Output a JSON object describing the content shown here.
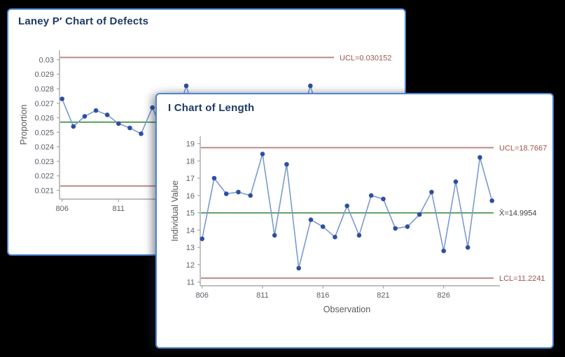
{
  "desktop": {
    "background": "#000000"
  },
  "theme": {
    "window_border": "#4e86d2",
    "window_bg": "#ffffff",
    "title_color": "#1e3a66",
    "axis_color": "#a8a8a8",
    "tick_label_color": "#5a6068",
    "axis_title_color": "#595959",
    "line_color": "#7b9ace",
    "marker_color": "#2d4fa2",
    "limit_line_color": "#bf8a85",
    "limit_label_color": "#9b564d",
    "center_line_color": "#3a8a3f",
    "center_label_color": "#404040"
  },
  "windows": [
    {
      "id": "laney",
      "title": "Laney P′ Chart of Defects"
    },
    {
      "id": "ichart",
      "title": "I Chart of Length"
    }
  ],
  "chart_data": [
    {
      "id": "laney",
      "type": "line",
      "title": "Laney P′ Chart of Defects",
      "xlabel": "",
      "ylabel": "Proportion",
      "ylim": [
        0.0204,
        0.0306
      ],
      "yticks": [
        {
          "v": 0.03,
          "label": "0.03"
        },
        {
          "v": 0.029,
          "label": "0.029"
        },
        {
          "v": 0.028,
          "label": "0.028"
        },
        {
          "v": 0.027,
          "label": "0.027"
        },
        {
          "v": 0.026,
          "label": "0.026"
        },
        {
          "v": 0.025,
          "label": "0.025"
        },
        {
          "v": 0.024,
          "label": "0.024"
        },
        {
          "v": 0.023,
          "label": "0.023"
        },
        {
          "v": 0.022,
          "label": "0.022"
        },
        {
          "v": 0.021,
          "label": "0.021"
        }
      ],
      "xticks": [
        {
          "v": 806,
          "label": "806"
        },
        {
          "v": 811,
          "label": "811"
        }
      ],
      "ucl": {
        "value": 0.030152,
        "label": "UCL=0.030152"
      },
      "center": {
        "value": 0.0257,
        "label": ""
      },
      "lcl": {
        "value": 0.0213,
        "label": ""
      },
      "points": [
        {
          "x": 806,
          "y": 0.0273
        },
        {
          "x": 807,
          "y": 0.0254
        },
        {
          "x": 808,
          "y": 0.0261
        },
        {
          "x": 809,
          "y": 0.0265
        },
        {
          "x": 810,
          "y": 0.0262
        },
        {
          "x": 811,
          "y": 0.0256
        },
        {
          "x": 812,
          "y": 0.0253
        },
        {
          "x": 813,
          "y": 0.0249
        },
        {
          "x": 814,
          "y": 0.0267
        }
      ],
      "stub_to": {
        "x": 815,
        "y": 0.0249
      },
      "peek_points": [
        {
          "x": 817,
          "y": 0.0282
        },
        {
          "x": 828,
          "y": 0.0282
        }
      ]
    },
    {
      "id": "ichart",
      "type": "line",
      "title": "I Chart of Length",
      "xlabel": "Observation",
      "ylabel": "Individual Value",
      "ylim": [
        10.6,
        19.4
      ],
      "yticks": [
        {
          "v": 19,
          "label": "19"
        },
        {
          "v": 18,
          "label": "18"
        },
        {
          "v": 17,
          "label": "17"
        },
        {
          "v": 16,
          "label": "16"
        },
        {
          "v": 15,
          "label": "15"
        },
        {
          "v": 14,
          "label": "14"
        },
        {
          "v": 13,
          "label": "13"
        },
        {
          "v": 12,
          "label": "12"
        },
        {
          "v": 11,
          "label": "11"
        }
      ],
      "xticks": [
        {
          "v": 806,
          "label": "806"
        },
        {
          "v": 811,
          "label": "811"
        },
        {
          "v": 816,
          "label": "816"
        },
        {
          "v": 821,
          "label": "821"
        },
        {
          "v": 826,
          "label": "826"
        }
      ],
      "ucl": {
        "value": 18.7667,
        "label": "UCL=18.7667"
      },
      "center": {
        "value": 14.9954,
        "label": "X̄=14.9954"
      },
      "lcl": {
        "value": 11.2241,
        "label": "LCL=11.2241"
      },
      "x": [
        806,
        807,
        808,
        809,
        810,
        811,
        812,
        813,
        814,
        815,
        816,
        817,
        818,
        819,
        820,
        821,
        822,
        823,
        824,
        825,
        826,
        827,
        828,
        829,
        830
      ],
      "values": [
        13.5,
        17.0,
        16.1,
        16.2,
        16.0,
        18.4,
        13.7,
        17.8,
        11.8,
        14.6,
        14.2,
        13.6,
        15.4,
        13.7,
        16.0,
        15.8,
        14.1,
        14.2,
        14.9,
        16.2,
        12.8,
        16.8,
        13.0,
        18.2,
        15.7
      ]
    }
  ]
}
